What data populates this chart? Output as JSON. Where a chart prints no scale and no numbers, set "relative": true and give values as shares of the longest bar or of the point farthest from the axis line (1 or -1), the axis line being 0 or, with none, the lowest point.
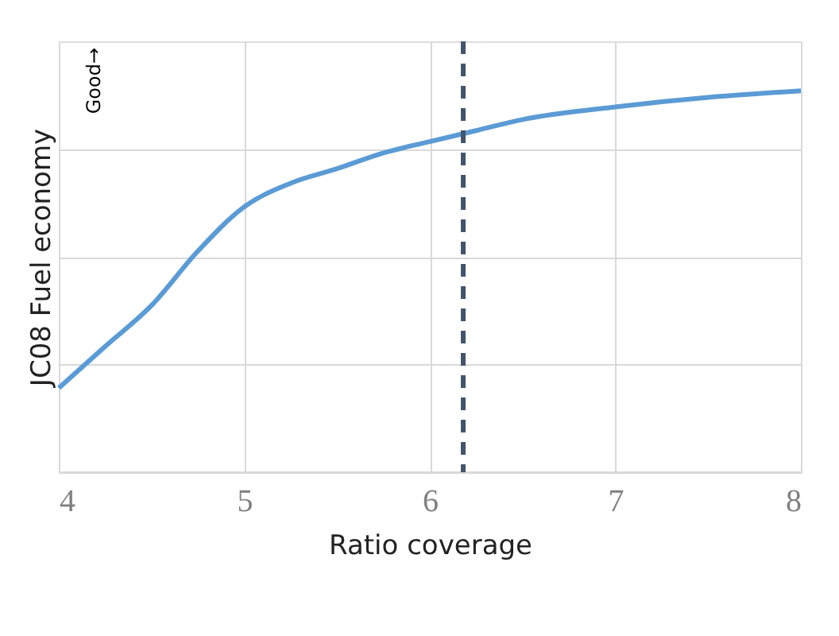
{
  "chart_data": {
    "type": "line",
    "relative": true,
    "xlabel": "Ratio coverage",
    "ylabel": "JC08 Fuel economy",
    "annotations": [
      "Good→"
    ],
    "x": [
      4,
      4.25,
      4.5,
      4.75,
      5,
      5.25,
      5.5,
      5.75,
      6,
      6.25,
      6.5,
      7,
      7.5,
      8
    ],
    "series": [
      {
        "color": "#5b9bd5",
        "values": [
          0.221,
          0.33,
          0.4375,
          0.58,
          0.696,
          0.758,
          0.796,
          0.8375,
          0.867,
          0.896,
          0.925,
          0.958,
          0.983,
          1.0
        ]
      }
    ],
    "xlim": [
      4,
      8
    ],
    "xticks": [
      4,
      5,
      6,
      7,
      8
    ],
    "grid": true,
    "tick_labels": "x",
    "marker": "none",
    "line_style": "solid",
    "ref_lines": [
      {
        "axis": "x",
        "value": 6.18,
        "color": "#44546a",
        "line_style": "dashed"
      }
    ]
  }
}
